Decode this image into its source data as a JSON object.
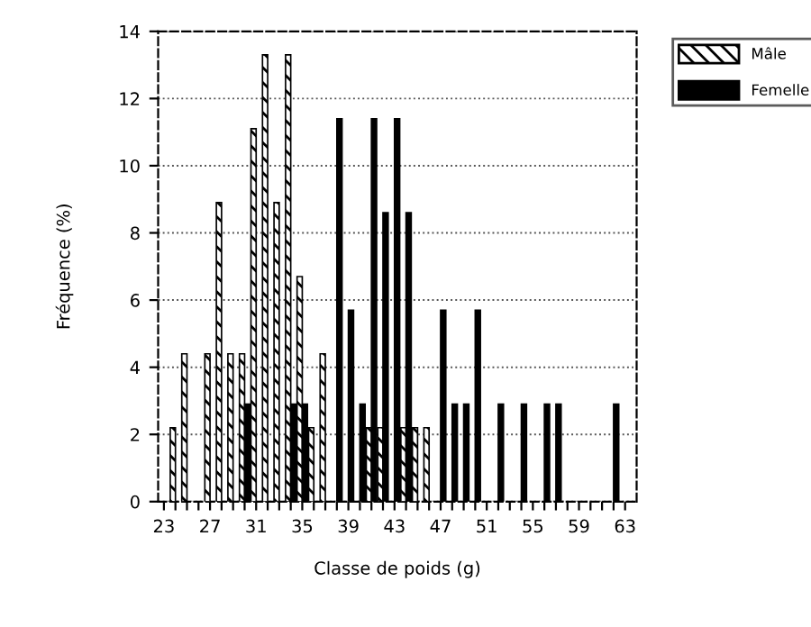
{
  "chart_data": {
    "type": "bar",
    "xlabel": "Classe de poids (g)",
    "ylabel": "Fréquence (%)",
    "series": [
      {
        "name": "Mâle",
        "color": "#000000",
        "x": [
          24,
          25,
          27,
          28,
          29,
          30,
          31,
          32,
          33,
          34,
          35,
          36,
          37,
          41,
          42,
          44,
          45,
          46
        ],
        "values": [
          2.2,
          4.4,
          4.4,
          8.9,
          4.4,
          4.4,
          11.1,
          13.3,
          8.9,
          13.3,
          6.7,
          2.2,
          4.4,
          2.2,
          2.2,
          2.2,
          2.2,
          2.2
        ]
      },
      {
        "name": "Femelle",
        "color": "#000000",
        "x": [
          30,
          34,
          35,
          38,
          39,
          40,
          41,
          42,
          43,
          44,
          47,
          48,
          49,
          50,
          52,
          54,
          56,
          57,
          62
        ],
        "values": [
          2.9,
          2.9,
          2.9,
          11.4,
          5.7,
          2.9,
          11.4,
          8.6,
          11.4,
          8.6,
          5.7,
          2.9,
          2.9,
          5.7,
          2.9,
          2.9,
          2.9,
          2.9,
          2.9
        ]
      }
    ],
    "xlim": [
      22.5,
      64
    ],
    "xticks": [
      23,
      {
        "value": 24,
        "label": null
      },
      {
        "value": 25,
        "label": null
      },
      {
        "value": 26,
        "label": null
      },
      27,
      {
        "value": 28,
        "label": null
      },
      {
        "value": 29,
        "label": null
      },
      {
        "value": 30,
        "label": null
      },
      31,
      {
        "value": 32,
        "label": null
      },
      {
        "value": 33,
        "label": null
      },
      {
        "value": 34,
        "label": null
      },
      35,
      {
        "value": 36,
        "label": null
      },
      {
        "value": 37,
        "label": null
      },
      {
        "value": 38,
        "label": null
      },
      39,
      {
        "value": 40,
        "label": null
      },
      {
        "value": 41,
        "label": null
      },
      {
        "value": 42,
        "label": null
      },
      43,
      {
        "value": 44,
        "label": null
      },
      {
        "value": 45,
        "label": null
      },
      {
        "value": 46,
        "label": null
      },
      47,
      {
        "value": 48,
        "label": null
      },
      {
        "value": 49,
        "label": null
      },
      {
        "value": 50,
        "label": null
      },
      51,
      {
        "value": 52,
        "label": null
      },
      {
        "value": 53,
        "label": null
      },
      {
        "value": 54,
        "label": null
      },
      55,
      {
        "value": 56,
        "label": null
      },
      {
        "value": 57,
        "label": null
      },
      {
        "value": 58,
        "label": null
      },
      59,
      {
        "value": 60,
        "label": null
      },
      {
        "value": 61,
        "label": null
      },
      {
        "value": 62,
        "label": null
      },
      63
    ],
    "ylim": [
      0,
      14
    ],
    "yticks": [
      0,
      2,
      4,
      6,
      8,
      10,
      12,
      14
    ],
    "grid": "y",
    "legend": "top right"
  }
}
